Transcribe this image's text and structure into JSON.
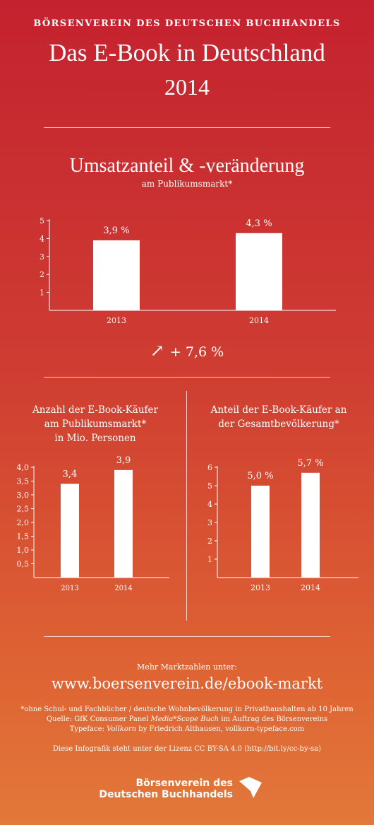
{
  "header": {
    "organization": "BÖRSENVEREIN DES DEUTSCHEN BUCHHANDELS",
    "title": "Das E-Book in Deutschland",
    "year": "2014"
  },
  "section_main": {
    "title": "Umsatzanteil & -veränderung",
    "subtitle": "am Publikumsmarkt*",
    "change_arrow": "↗",
    "change_text": "+ 7,6 %"
  },
  "panel_left": {
    "title_lines": [
      "Anzahl der E-Book-Käufer",
      "am Publikumsmarkt*",
      "in Mio. Personen"
    ]
  },
  "panel_right": {
    "title_lines": [
      "Anteil der E-Book-Käufer an",
      "der Gesamtbevölkerung*"
    ]
  },
  "chart_data": [
    {
      "type": "bar",
      "categories": [
        "2013",
        "2014"
      ],
      "values": [
        3.9,
        4.3
      ],
      "data_labels": [
        "3,9 %",
        "4,3 %"
      ],
      "title": "Umsatzanteil & -veränderung",
      "subtitle": "am Publikumsmarkt*",
      "y_ticks": [
        1,
        2,
        3,
        4,
        5
      ],
      "y_tick_labels": [
        "1",
        "2",
        "3",
        "4",
        "5"
      ],
      "ylim": [
        0,
        5
      ],
      "grid": false
    },
    {
      "type": "bar",
      "categories": [
        "2013",
        "2014"
      ],
      "values": [
        3.4,
        3.9
      ],
      "data_labels": [
        "3,4",
        "3,9"
      ],
      "title": "Anzahl der E-Book-Käufer am Publikumsmarkt* in Mio. Personen",
      "y_ticks": [
        0.5,
        1.0,
        1.5,
        2.0,
        2.5,
        3.0,
        3.5,
        4.0
      ],
      "y_tick_labels": [
        "0,5",
        "1,0",
        "1,5",
        "2,0",
        "2,5",
        "3,0",
        "3,5",
        "4,0"
      ],
      "ylim": [
        0,
        4
      ],
      "grid": false
    },
    {
      "type": "bar",
      "categories": [
        "2013",
        "2014"
      ],
      "values": [
        5.0,
        5.7
      ],
      "data_labels": [
        "5,0 %",
        "5,7 %"
      ],
      "title": "Anteil der E-Book-Käufer an der Gesamtbevölkerung*",
      "y_ticks": [
        1,
        2,
        3,
        4,
        5,
        6
      ],
      "y_tick_labels": [
        "1",
        "2",
        "3",
        "4",
        "5",
        "6"
      ],
      "ylim": [
        0,
        6
      ],
      "grid": false
    }
  ],
  "footer": {
    "more_label": "Mehr Marktzahlen unter:",
    "url": "www.boersenverein.de/ebook-markt",
    "footnote": "*ohne Schul- und Fachbücher / deutsche Wohnbevölkerung in Privathaushalten ab 10 Jahren",
    "source_prefix": "Quelle: GfK Consumer Panel ",
    "source_italic": "Media*Scope Buch",
    "source_suffix": " im Auftrag des Börsenvereins",
    "typeface_prefix": "Typeface: ",
    "typeface_italic": "Vollkorn",
    "typeface_suffix": " by Friedrich Althausen, vollkorn-typeface.com",
    "license": "Diese Infografik steht unter der Lizenz CC BY-SA 4.0 (http://bit.ly/cc-by-sa)",
    "logo_line1": "Börsenverein des",
    "logo_line2": "Deutschen Buchhandels"
  }
}
